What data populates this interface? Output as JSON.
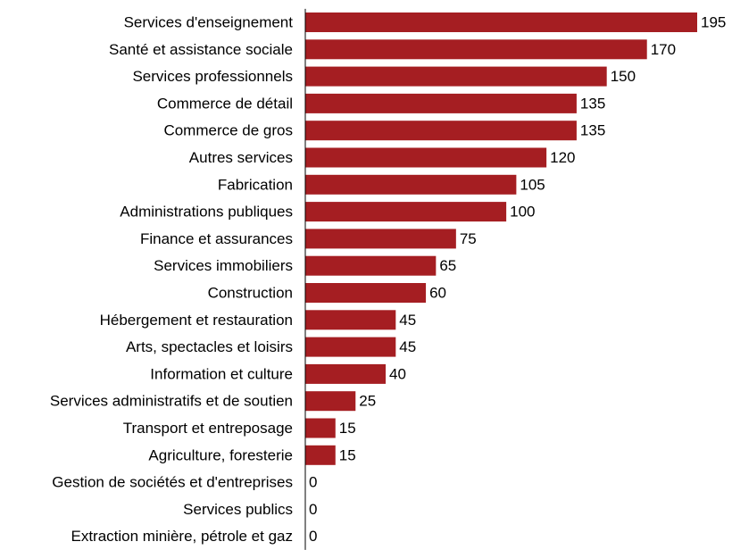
{
  "chart_data": {
    "type": "bar",
    "orientation": "horizontal",
    "categories": [
      "Services d'enseignement",
      "Santé et assistance sociale",
      "Services professionnels",
      "Commerce de détail",
      "Commerce de gros",
      "Autres services",
      "Fabrication",
      "Administrations publiques",
      "Finance et assurances",
      "Services immobiliers",
      "Construction",
      "Hébergement et restauration",
      "Arts, spectacles et loisirs",
      "Information et culture",
      "Services administratifs et de soutien",
      "Transport et entreposage",
      "Agriculture, foresterie",
      "Gestion de sociétés et d'entreprises",
      "Services publics",
      "Extraction minière, pétrole et gaz"
    ],
    "values": [
      195,
      170,
      150,
      135,
      135,
      120,
      105,
      100,
      75,
      65,
      60,
      45,
      45,
      40,
      25,
      15,
      15,
      0,
      0,
      0
    ],
    "value_labels": [
      "195",
      "170",
      "150",
      "135",
      "135",
      "120",
      "105",
      "100",
      "75",
      "65",
      "60",
      "45",
      "45",
      "40",
      "25",
      "15",
      "15",
      "0",
      "0",
      "0"
    ],
    "xlim": [
      0,
      195
    ],
    "grid": false,
    "legend": "none",
    "bar_color": "#A51E22"
  }
}
